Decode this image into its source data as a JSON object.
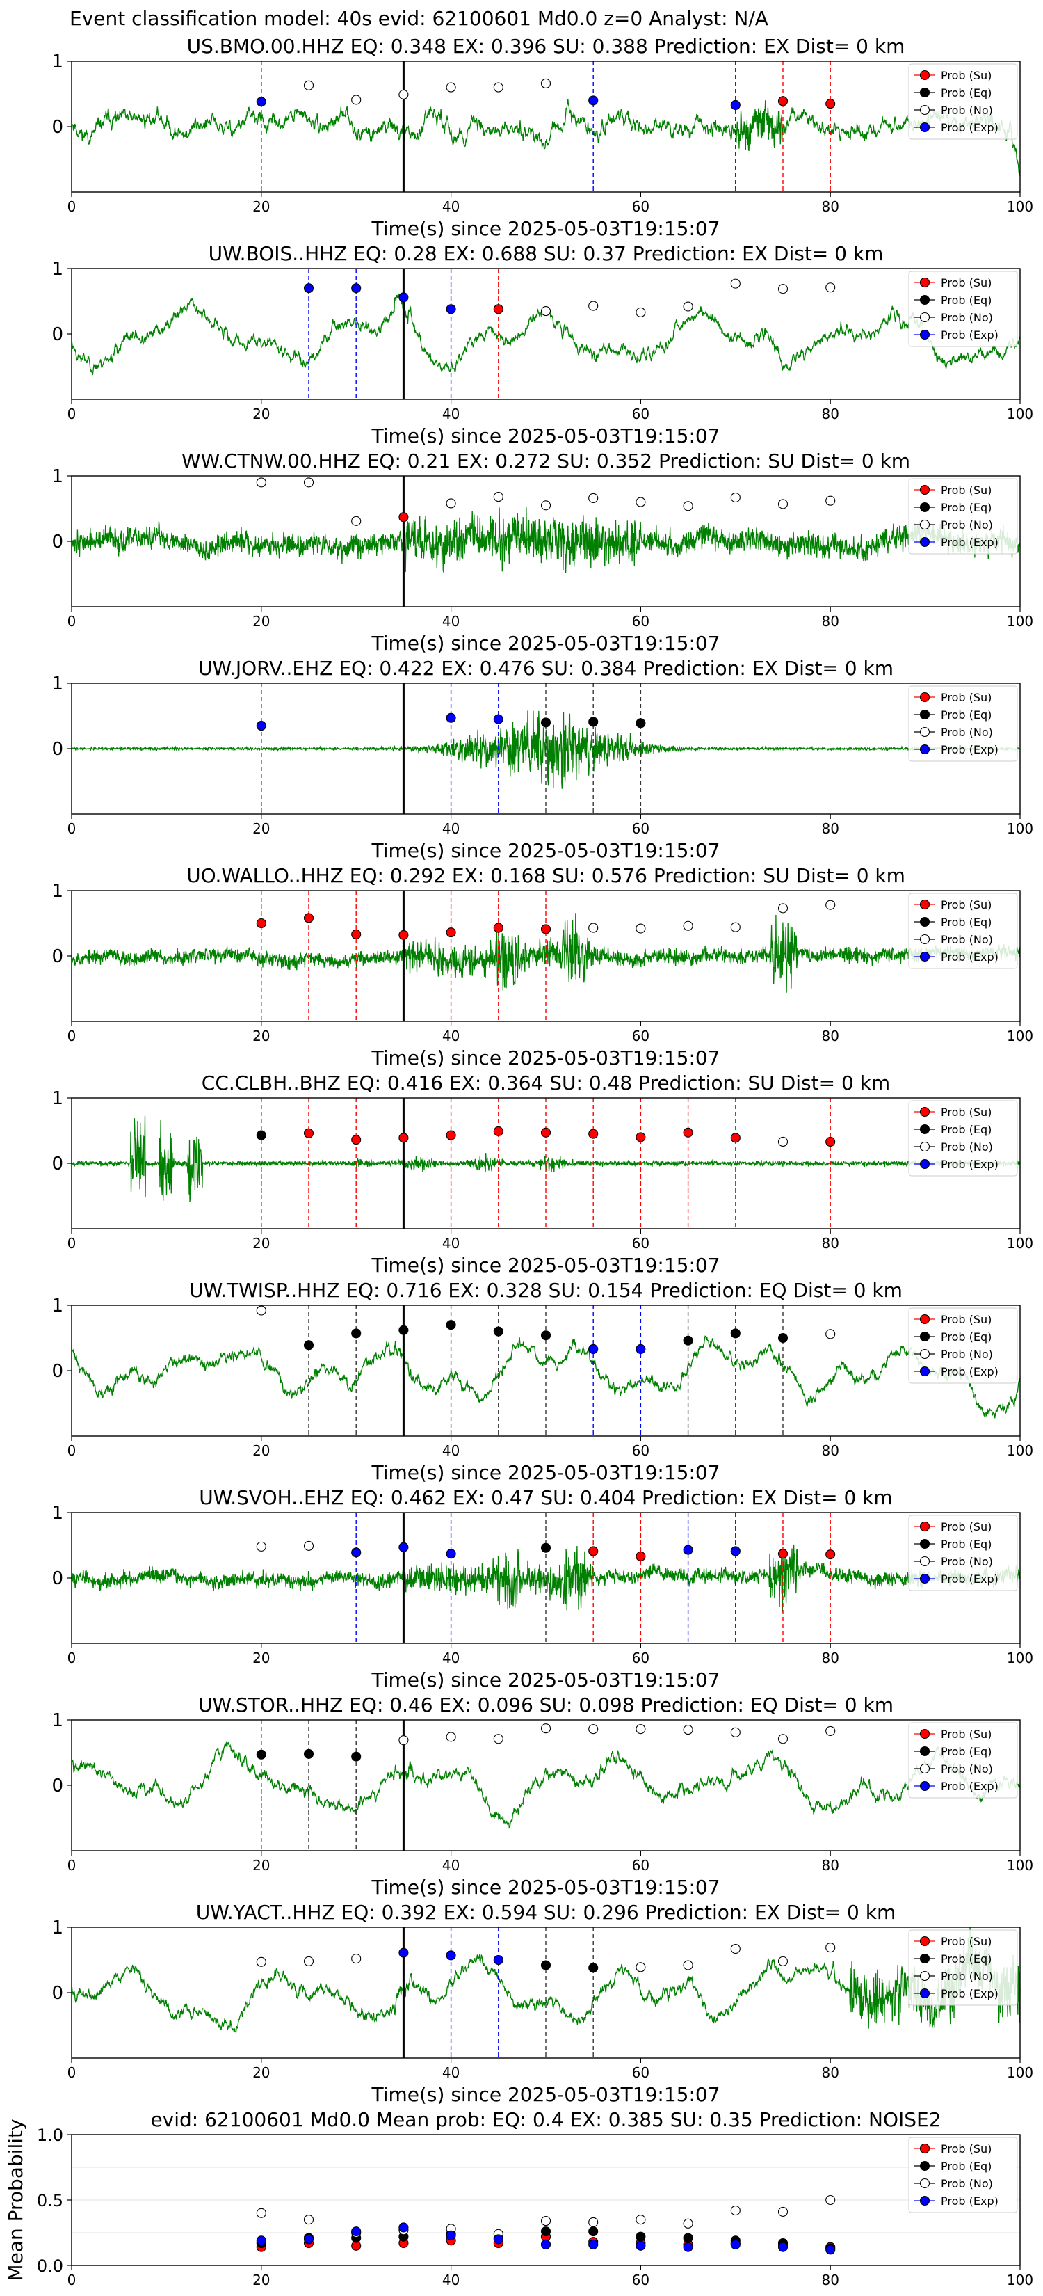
{
  "figure": {
    "suptitle": "Event classification model: 40s evid: 62100601 Md0.0 z=0 Analyst: N/A"
  },
  "colors": {
    "waveform": "#008000",
    "su": "#ff0000",
    "eq": "#000000",
    "no": "#ffffff",
    "exp": "#0000ff",
    "origin_line": "#000000"
  },
  "legend_labels": [
    "Prob (Su)",
    "Prob (Eq)",
    "Prob (No)",
    "Prob (Exp)"
  ],
  "chart_data": [
    {
      "type": "line",
      "title": "US.BMO.00.HHZ   EQ: 0.348  EX: 0.396  SU: 0.388   Prediction: EX    Dist= 0 km",
      "xlabel": "Time(s) since 2025-05-03T19:15:07",
      "xlim": [
        0,
        100
      ],
      "ylim": [
        -1,
        1
      ],
      "xticks": [
        0,
        20,
        40,
        60,
        80,
        100
      ],
      "yticks": [
        0,
        1
      ],
      "origin_time": 35,
      "waveform": {
        "style": "broadband",
        "seed": 11
      },
      "points": [
        {
          "t": 20,
          "p": 0.38,
          "cls": "exp"
        },
        {
          "t": 25,
          "p": 0.63,
          "cls": "no"
        },
        {
          "t": 30,
          "p": 0.41,
          "cls": "no"
        },
        {
          "t": 35,
          "p": 0.49,
          "cls": "no"
        },
        {
          "t": 40,
          "p": 0.6,
          "cls": "no"
        },
        {
          "t": 45,
          "p": 0.6,
          "cls": "no"
        },
        {
          "t": 50,
          "p": 0.66,
          "cls": "no"
        },
        {
          "t": 55,
          "p": 0.4,
          "cls": "exp"
        },
        {
          "t": 70,
          "p": 0.33,
          "cls": "exp"
        },
        {
          "t": 75,
          "p": 0.39,
          "cls": "su"
        },
        {
          "t": 80,
          "p": 0.35,
          "cls": "su"
        }
      ]
    },
    {
      "type": "line",
      "title": "UW.BOIS..HHZ   EQ: 0.28  EX: 0.688  SU: 0.37   Prediction: EX    Dist= 0 km",
      "xlabel": "Time(s) since 2025-05-03T19:15:07",
      "xlim": [
        0,
        100
      ],
      "ylim": [
        -1,
        1
      ],
      "xticks": [
        0,
        20,
        40,
        60,
        80,
        100
      ],
      "yticks": [
        0,
        1
      ],
      "origin_time": 35,
      "waveform": {
        "style": "oscillating",
        "seed": 23
      },
      "points": [
        {
          "t": 25,
          "p": 0.7,
          "cls": "exp"
        },
        {
          "t": 30,
          "p": 0.7,
          "cls": "exp"
        },
        {
          "t": 35,
          "p": 0.56,
          "cls": "exp"
        },
        {
          "t": 40,
          "p": 0.38,
          "cls": "exp"
        },
        {
          "t": 45,
          "p": 0.38,
          "cls": "su"
        },
        {
          "t": 50,
          "p": 0.35,
          "cls": "no"
        },
        {
          "t": 55,
          "p": 0.43,
          "cls": "no"
        },
        {
          "t": 60,
          "p": 0.33,
          "cls": "no"
        },
        {
          "t": 65,
          "p": 0.42,
          "cls": "no"
        },
        {
          "t": 70,
          "p": 0.77,
          "cls": "no"
        },
        {
          "t": 75,
          "p": 0.69,
          "cls": "no"
        },
        {
          "t": 80,
          "p": 0.71,
          "cls": "no"
        }
      ]
    },
    {
      "type": "line",
      "title": "WW.CTNW.00.HHZ   EQ: 0.21  EX: 0.272  SU: 0.352   Prediction: SU    Dist= 0 km",
      "xlabel": "Time(s) since 2025-05-03T19:15:07",
      "xlim": [
        0,
        100
      ],
      "ylim": [
        -1,
        1
      ],
      "xticks": [
        0,
        20,
        40,
        60,
        80,
        100
      ],
      "yticks": [
        0,
        1
      ],
      "origin_time": 35,
      "waveform": {
        "style": "noisy",
        "seed": 37
      },
      "points": [
        {
          "t": 20,
          "p": 0.9,
          "cls": "no"
        },
        {
          "t": 25,
          "p": 0.9,
          "cls": "no"
        },
        {
          "t": 30,
          "p": 0.31,
          "cls": "no"
        },
        {
          "t": 35,
          "p": 0.37,
          "cls": "su"
        },
        {
          "t": 40,
          "p": 0.58,
          "cls": "no"
        },
        {
          "t": 45,
          "p": 0.68,
          "cls": "no"
        },
        {
          "t": 50,
          "p": 0.55,
          "cls": "no"
        },
        {
          "t": 55,
          "p": 0.66,
          "cls": "no"
        },
        {
          "t": 60,
          "p": 0.6,
          "cls": "no"
        },
        {
          "t": 65,
          "p": 0.54,
          "cls": "no"
        },
        {
          "t": 70,
          "p": 0.67,
          "cls": "no"
        },
        {
          "t": 75,
          "p": 0.57,
          "cls": "no"
        },
        {
          "t": 80,
          "p": 0.62,
          "cls": "no"
        }
      ]
    },
    {
      "type": "line",
      "title": "UW.JORV..EHZ   EQ: 0.422  EX: 0.476  SU: 0.384   Prediction: EX    Dist= 0 km",
      "xlabel": "Time(s) since 2025-05-03T19:15:07",
      "xlim": [
        0,
        100
      ],
      "ylim": [
        -1,
        1
      ],
      "xticks": [
        0,
        20,
        40,
        60,
        80,
        100
      ],
      "yticks": [
        0,
        1
      ],
      "origin_time": 35,
      "waveform": {
        "style": "burst",
        "seed": 41
      },
      "points": [
        {
          "t": 20,
          "p": 0.35,
          "cls": "exp"
        },
        {
          "t": 40,
          "p": 0.47,
          "cls": "exp"
        },
        {
          "t": 45,
          "p": 0.45,
          "cls": "exp"
        },
        {
          "t": 50,
          "p": 0.4,
          "cls": "eq"
        },
        {
          "t": 55,
          "p": 0.41,
          "cls": "eq"
        },
        {
          "t": 60,
          "p": 0.39,
          "cls": "eq"
        }
      ]
    },
    {
      "type": "line",
      "title": "UO.WALLO..HHZ   EQ: 0.292  EX: 0.168  SU: 0.576   Prediction: SU    Dist= 0 km",
      "xlabel": "Time(s) since 2025-05-03T19:15:07",
      "xlim": [
        0,
        100
      ],
      "ylim": [
        -1,
        1
      ],
      "xticks": [
        0,
        20,
        40,
        60,
        80,
        100
      ],
      "yticks": [
        0,
        1
      ],
      "origin_time": 35,
      "waveform": {
        "style": "noisy_event",
        "seed": 53
      },
      "points": [
        {
          "t": 20,
          "p": 0.5,
          "cls": "su"
        },
        {
          "t": 25,
          "p": 0.58,
          "cls": "su"
        },
        {
          "t": 30,
          "p": 0.33,
          "cls": "su"
        },
        {
          "t": 35,
          "p": 0.32,
          "cls": "su"
        },
        {
          "t": 40,
          "p": 0.36,
          "cls": "su"
        },
        {
          "t": 45,
          "p": 0.43,
          "cls": "su"
        },
        {
          "t": 50,
          "p": 0.41,
          "cls": "su"
        },
        {
          "t": 55,
          "p": 0.43,
          "cls": "no"
        },
        {
          "t": 60,
          "p": 0.42,
          "cls": "no"
        },
        {
          "t": 65,
          "p": 0.46,
          "cls": "no"
        },
        {
          "t": 70,
          "p": 0.44,
          "cls": "no"
        },
        {
          "t": 75,
          "p": 0.73,
          "cls": "no"
        },
        {
          "t": 80,
          "p": 0.78,
          "cls": "no"
        }
      ]
    },
    {
      "type": "line",
      "title": "CC.CLBH..BHZ   EQ: 0.416  EX: 0.364  SU: 0.48   Prediction: SU    Dist= 0 km",
      "xlabel": "Time(s) since 2025-05-03T19:15:07",
      "xlim": [
        0,
        100
      ],
      "ylim": [
        -1,
        1
      ],
      "xticks": [
        0,
        20,
        40,
        60,
        80,
        100
      ],
      "yticks": [
        0,
        1
      ],
      "origin_time": 35,
      "waveform": {
        "style": "spiky",
        "seed": 67
      },
      "points": [
        {
          "t": 20,
          "p": 0.43,
          "cls": "eq"
        },
        {
          "t": 25,
          "p": 0.46,
          "cls": "su"
        },
        {
          "t": 30,
          "p": 0.36,
          "cls": "su"
        },
        {
          "t": 35,
          "p": 0.39,
          "cls": "su"
        },
        {
          "t": 40,
          "p": 0.43,
          "cls": "su"
        },
        {
          "t": 45,
          "p": 0.49,
          "cls": "su"
        },
        {
          "t": 50,
          "p": 0.47,
          "cls": "su"
        },
        {
          "t": 55,
          "p": 0.45,
          "cls": "su"
        },
        {
          "t": 60,
          "p": 0.4,
          "cls": "su"
        },
        {
          "t": 65,
          "p": 0.47,
          "cls": "su"
        },
        {
          "t": 70,
          "p": 0.39,
          "cls": "su"
        },
        {
          "t": 75,
          "p": 0.33,
          "cls": "no"
        },
        {
          "t": 80,
          "p": 0.33,
          "cls": "su"
        }
      ]
    },
    {
      "type": "line",
      "title": "UW.TWISP..HHZ   EQ: 0.716  EX: 0.328  SU: 0.154   Prediction: EQ    Dist= 0 km",
      "xlabel": "Time(s) since 2025-05-03T19:15:07",
      "xlim": [
        0,
        100
      ],
      "ylim": [
        -1,
        1
      ],
      "xticks": [
        0,
        20,
        40,
        60,
        80,
        100
      ],
      "yticks": [
        0,
        1
      ],
      "origin_time": 35,
      "waveform": {
        "style": "oscillating",
        "seed": 71
      },
      "points": [
        {
          "t": 20,
          "p": 0.92,
          "cls": "no"
        },
        {
          "t": 25,
          "p": 0.39,
          "cls": "eq"
        },
        {
          "t": 30,
          "p": 0.57,
          "cls": "eq"
        },
        {
          "t": 35,
          "p": 0.62,
          "cls": "eq"
        },
        {
          "t": 40,
          "p": 0.7,
          "cls": "eq"
        },
        {
          "t": 45,
          "p": 0.6,
          "cls": "eq"
        },
        {
          "t": 50,
          "p": 0.54,
          "cls": "eq"
        },
        {
          "t": 55,
          "p": 0.33,
          "cls": "exp"
        },
        {
          "t": 60,
          "p": 0.33,
          "cls": "exp"
        },
        {
          "t": 65,
          "p": 0.46,
          "cls": "eq"
        },
        {
          "t": 70,
          "p": 0.57,
          "cls": "eq"
        },
        {
          "t": 75,
          "p": 0.5,
          "cls": "eq"
        },
        {
          "t": 80,
          "p": 0.56,
          "cls": "no"
        }
      ]
    },
    {
      "type": "line",
      "title": "UW.SVOH..EHZ   EQ: 0.462  EX: 0.47  SU: 0.404   Prediction: EX    Dist= 0 km",
      "xlabel": "Time(s) since 2025-05-03T19:15:07",
      "xlim": [
        0,
        100
      ],
      "ylim": [
        -1,
        1
      ],
      "xticks": [
        0,
        20,
        40,
        60,
        80,
        100
      ],
      "yticks": [
        0,
        1
      ],
      "origin_time": 35,
      "waveform": {
        "style": "noisy_event",
        "seed": 83
      },
      "points": [
        {
          "t": 20,
          "p": 0.48,
          "cls": "no"
        },
        {
          "t": 25,
          "p": 0.49,
          "cls": "no"
        },
        {
          "t": 30,
          "p": 0.39,
          "cls": "exp"
        },
        {
          "t": 35,
          "p": 0.47,
          "cls": "exp"
        },
        {
          "t": 40,
          "p": 0.37,
          "cls": "exp"
        },
        {
          "t": 50,
          "p": 0.46,
          "cls": "eq"
        },
        {
          "t": 55,
          "p": 0.41,
          "cls": "su"
        },
        {
          "t": 60,
          "p": 0.33,
          "cls": "su"
        },
        {
          "t": 65,
          "p": 0.43,
          "cls": "exp"
        },
        {
          "t": 70,
          "p": 0.41,
          "cls": "exp"
        },
        {
          "t": 75,
          "p": 0.37,
          "cls": "su"
        },
        {
          "t": 80,
          "p": 0.36,
          "cls": "su"
        }
      ]
    },
    {
      "type": "line",
      "title": "UW.STOR..HHZ   EQ: 0.46  EX: 0.096  SU: 0.098   Prediction: EQ    Dist= 0 km",
      "xlabel": "Time(s) since 2025-05-03T19:15:07",
      "xlim": [
        0,
        100
      ],
      "ylim": [
        -1,
        1
      ],
      "xticks": [
        0,
        20,
        40,
        60,
        80,
        100
      ],
      "yticks": [
        0,
        1
      ],
      "origin_time": 35,
      "waveform": {
        "style": "oscillating",
        "seed": 97
      },
      "points": [
        {
          "t": 20,
          "p": 0.47,
          "cls": "eq"
        },
        {
          "t": 25,
          "p": 0.48,
          "cls": "eq"
        },
        {
          "t": 30,
          "p": 0.44,
          "cls": "eq"
        },
        {
          "t": 35,
          "p": 0.69,
          "cls": "no"
        },
        {
          "t": 40,
          "p": 0.74,
          "cls": "no"
        },
        {
          "t": 45,
          "p": 0.71,
          "cls": "no"
        },
        {
          "t": 50,
          "p": 0.87,
          "cls": "no"
        },
        {
          "t": 55,
          "p": 0.86,
          "cls": "no"
        },
        {
          "t": 60,
          "p": 0.86,
          "cls": "no"
        },
        {
          "t": 65,
          "p": 0.85,
          "cls": "no"
        },
        {
          "t": 70,
          "p": 0.81,
          "cls": "no"
        },
        {
          "t": 75,
          "p": 0.71,
          "cls": "no"
        },
        {
          "t": 80,
          "p": 0.83,
          "cls": "no"
        }
      ]
    },
    {
      "type": "line",
      "title": "UW.YACT..HHZ   EQ: 0.392  EX: 0.594  SU: 0.296   Prediction: EX    Dist= 0 km",
      "xlabel": "Time(s) since 2025-05-03T19:15:07",
      "xlim": [
        0,
        100
      ],
      "ylim": [
        -1,
        1
      ],
      "xticks": [
        0,
        20,
        40,
        60,
        80,
        100
      ],
      "yticks": [
        0,
        1
      ],
      "origin_time": 35,
      "waveform": {
        "style": "oscillating_noisy",
        "seed": 101
      },
      "points": [
        {
          "t": 20,
          "p": 0.47,
          "cls": "no"
        },
        {
          "t": 25,
          "p": 0.48,
          "cls": "no"
        },
        {
          "t": 30,
          "p": 0.52,
          "cls": "no"
        },
        {
          "t": 35,
          "p": 0.61,
          "cls": "exp"
        },
        {
          "t": 40,
          "p": 0.57,
          "cls": "exp"
        },
        {
          "t": 45,
          "p": 0.5,
          "cls": "exp"
        },
        {
          "t": 50,
          "p": 0.42,
          "cls": "eq"
        },
        {
          "t": 55,
          "p": 0.38,
          "cls": "eq"
        },
        {
          "t": 60,
          "p": 0.39,
          "cls": "no"
        },
        {
          "t": 65,
          "p": 0.42,
          "cls": "no"
        },
        {
          "t": 70,
          "p": 0.67,
          "cls": "no"
        },
        {
          "t": 75,
          "p": 0.48,
          "cls": "no"
        },
        {
          "t": 80,
          "p": 0.69,
          "cls": "no"
        }
      ]
    },
    {
      "type": "scatter",
      "title": "evid: 62100601  Md0.0   Mean prob:   EQ: 0.4  EX: 0.385  SU: 0.35   Prediction: NOISE2",
      "ylabel": "Mean Probability",
      "xlim": [
        0,
        100
      ],
      "ylim": [
        0,
        1
      ],
      "xticks": [
        0,
        20,
        40,
        60,
        80,
        100
      ],
      "yticks": [
        0.0,
        0.5,
        1.0
      ],
      "ytick_labels": [
        "0.0",
        "0.5",
        "1.0"
      ],
      "series": [
        {
          "name": "Prob (Su)",
          "cls": "su",
          "x": [
            20,
            25,
            30,
            35,
            40,
            45,
            50,
            55,
            60,
            65,
            70,
            75,
            80
          ],
          "y": [
            0.14,
            0.17,
            0.15,
            0.17,
            0.19,
            0.17,
            0.22,
            0.18,
            0.17,
            0.16,
            0.17,
            0.16,
            0.14
          ]
        },
        {
          "name": "Prob (Eq)",
          "cls": "eq",
          "x": [
            20,
            25,
            30,
            35,
            40,
            45,
            50,
            55,
            60,
            65,
            70,
            75,
            80
          ],
          "y": [
            0.17,
            0.21,
            0.21,
            0.22,
            0.24,
            0.21,
            0.26,
            0.26,
            0.22,
            0.21,
            0.19,
            0.17,
            0.13
          ]
        },
        {
          "name": "Prob (No)",
          "cls": "no",
          "x": [
            20,
            25,
            30,
            35,
            40,
            45,
            50,
            55,
            60,
            65,
            70,
            75,
            80
          ],
          "y": [
            0.4,
            0.35,
            0.25,
            0.27,
            0.28,
            0.24,
            0.34,
            0.33,
            0.35,
            0.32,
            0.42,
            0.41,
            0.5
          ]
        },
        {
          "name": "Prob (Exp)",
          "cls": "exp",
          "x": [
            20,
            25,
            30,
            35,
            40,
            45,
            50,
            55,
            60,
            65,
            70,
            75,
            80
          ],
          "y": [
            0.19,
            0.2,
            0.26,
            0.29,
            0.23,
            0.2,
            0.16,
            0.16,
            0.15,
            0.14,
            0.16,
            0.14,
            0.12
          ]
        }
      ]
    }
  ]
}
